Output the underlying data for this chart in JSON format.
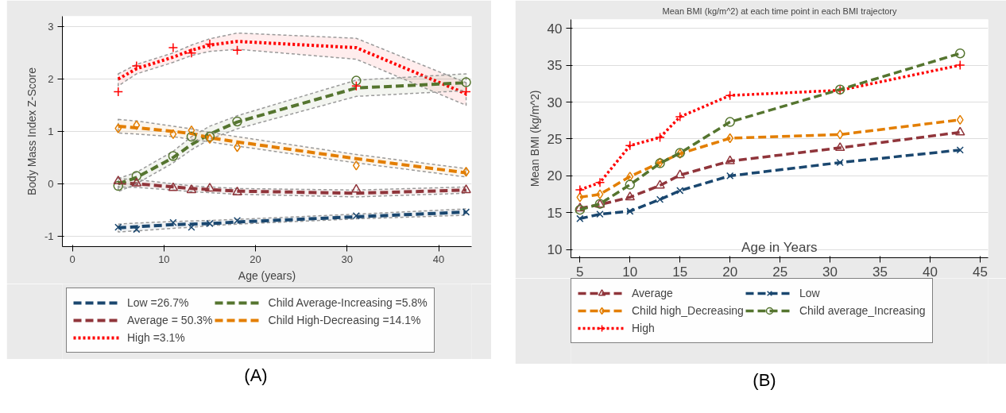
{
  "chart_data": [
    {
      "type": "line",
      "xlabel": "Age (years)",
      "ylabel": "Body Mass Index Z-Score",
      "annotations": [
        "(A)"
      ],
      "x": [
        5,
        7,
        11,
        13,
        15,
        18,
        31,
        43
      ],
      "xlim": [
        -1.1,
        43.6
      ],
      "ylim": [
        -1.2,
        3.2
      ],
      "xticks": [
        0,
        10,
        20,
        30,
        40
      ],
      "yticks": [
        -1,
        0,
        1,
        2,
        3
      ],
      "grid": "y",
      "legend": "bottom",
      "marker": "none",
      "series": [
        {
          "name": "Low =26.7%",
          "color": "#1a476f",
          "line_style": "dashed",
          "values": [
            -0.84,
            -0.82,
            -0.78,
            -0.77,
            -0.76,
            -0.73,
            -0.63,
            -0.54
          ],
          "lower": [
            -0.92,
            -0.9,
            -0.85,
            -0.83,
            -0.8,
            -0.77,
            -0.67,
            -0.6
          ],
          "upper": [
            -0.77,
            -0.75,
            -0.72,
            -0.71,
            -0.7,
            -0.68,
            -0.58,
            -0.48
          ]
        },
        {
          "name": "Average = 50.3%",
          "color": "#90353b",
          "line_style": "dashed",
          "values": [
            0.02,
            0.0,
            -0.06,
            -0.09,
            -0.11,
            -0.14,
            -0.18,
            -0.12
          ],
          "lower": [
            -0.06,
            -0.07,
            -0.12,
            -0.15,
            -0.17,
            -0.2,
            -0.25,
            -0.18
          ],
          "upper": [
            0.1,
            0.08,
            0.0,
            -0.04,
            -0.06,
            -0.09,
            -0.12,
            -0.06
          ]
        },
        {
          "name": "High =3.1%",
          "color": "#ff0000",
          "line_style": "dotted",
          "values": [
            2.0,
            2.2,
            2.42,
            2.55,
            2.65,
            2.72,
            2.6,
            1.72
          ],
          "lower": [
            1.87,
            2.1,
            2.32,
            2.45,
            2.53,
            2.57,
            2.38,
            1.5
          ],
          "upper": [
            2.1,
            2.28,
            2.5,
            2.65,
            2.77,
            2.88,
            2.78,
            1.93
          ]
        },
        {
          "name": "Child Average-Increasing =5.8%",
          "color": "#55752f",
          "line_style": "dashed",
          "values": [
            0.0,
            0.12,
            0.5,
            0.75,
            0.95,
            1.18,
            1.83,
            1.93
          ],
          "lower": [
            -0.15,
            0.0,
            0.4,
            0.65,
            0.85,
            1.05,
            1.67,
            1.78
          ],
          "upper": [
            0.1,
            0.22,
            0.62,
            0.9,
            1.1,
            1.3,
            1.98,
            2.1
          ]
        },
        {
          "name": "Child High-Decreasing =14.1%",
          "color": "#e37e00",
          "line_style": "dashed",
          "values": [
            1.1,
            1.07,
            1.0,
            0.96,
            0.88,
            0.8,
            0.48,
            0.21
          ],
          "lower": [
            0.97,
            0.95,
            0.9,
            0.85,
            0.8,
            0.72,
            0.4,
            0.13
          ],
          "upper": [
            1.23,
            1.2,
            1.1,
            1.05,
            0.98,
            0.9,
            0.56,
            0.29
          ]
        },
        {
          "type": "scatter",
          "color": "#1a476f",
          "marker": "x",
          "values": [
            -0.83,
            -0.87,
            -0.74,
            -0.83,
            -0.76,
            -0.7,
            -0.61,
            -0.54
          ]
        },
        {
          "type": "scatter",
          "color": "#55752f",
          "marker": "circle",
          "values": [
            -0.04,
            0.15,
            0.53,
            0.9,
            0.9,
            1.19,
            1.97,
            1.94
          ]
        },
        {
          "type": "scatter",
          "color": "#90353b",
          "marker": "triangle",
          "values": [
            0.05,
            0.01,
            -0.08,
            -0.12,
            -0.09,
            -0.16,
            -0.11,
            -0.12
          ]
        },
        {
          "type": "scatter",
          "color": "#e37e00",
          "marker": "diamond",
          "values": [
            1.06,
            1.12,
            0.95,
            1.02,
            0.86,
            0.7,
            0.35,
            0.23
          ]
        },
        {
          "type": "scatter",
          "color": "#ff0000",
          "marker": "cross",
          "values": [
            1.76,
            2.25,
            2.6,
            2.5,
            2.67,
            2.55,
            1.87,
            1.76
          ]
        }
      ]
    },
    {
      "type": "line",
      "title": "Mean BMI (kg/m^2) at each time point in each BMI trajectory",
      "xlabel": "Age in Years",
      "ylabel": "Mean BMI (kg/m^2)",
      "annotations": [
        "(B)"
      ],
      "x": [
        5,
        7,
        10,
        13,
        15,
        20,
        31,
        43
      ],
      "xlim": [
        4.1,
        45.8
      ],
      "ylim": [
        8.9,
        41.2
      ],
      "xticks": [
        5,
        10,
        15,
        20,
        25,
        30,
        35,
        40,
        45
      ],
      "yticks": [
        10,
        15,
        20,
        25,
        30,
        35,
        40
      ],
      "grid": "y",
      "legend": "bottom",
      "series": [
        {
          "name": "Average",
          "color": "#90353b",
          "line_style": "dashed",
          "marker": "triangle",
          "values": [
            15.6,
            16.1,
            17.1,
            18.7,
            20.1,
            22.0,
            23.8,
            25.9
          ]
        },
        {
          "name": "Child high_Decreasing",
          "color": "#e37e00",
          "line_style": "dashed",
          "marker": "diamond",
          "values": [
            17.1,
            17.5,
            19.9,
            21.8,
            23.0,
            25.1,
            25.6,
            27.6
          ]
        },
        {
          "name": "High",
          "color": "#ff0000",
          "line_style": "dotted",
          "marker": "cross",
          "values": [
            18.1,
            19.1,
            24.1,
            25.2,
            28.0,
            30.9,
            31.6,
            35.0
          ]
        },
        {
          "name": "Low",
          "color": "#1a476f",
          "line_style": "dashed",
          "marker": "x",
          "values": [
            14.2,
            14.8,
            15.2,
            16.8,
            18.0,
            20.0,
            21.8,
            23.5
          ]
        },
        {
          "name": "Child average_Increasing",
          "color": "#55752f",
          "line_style": "dashed",
          "marker": "circle",
          "values": [
            15.4,
            16.2,
            18.8,
            21.7,
            23.1,
            27.3,
            31.7,
            36.6
          ]
        }
      ]
    }
  ]
}
